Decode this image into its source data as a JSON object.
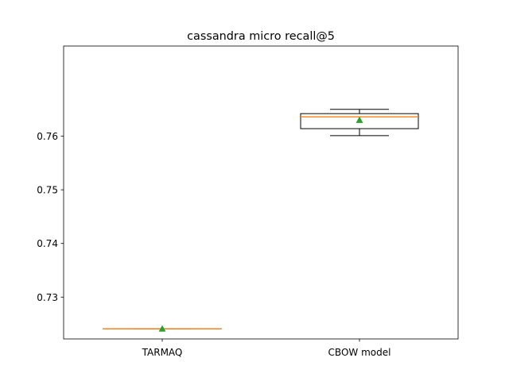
{
  "chart_data": {
    "type": "box",
    "title": "cassandra micro recall@5",
    "xlabel": "",
    "ylabel": "",
    "categories": [
      "TARMAQ",
      "CBOW model"
    ],
    "ylim": [
      0.7222,
      0.7768
    ],
    "yticks": [
      0.73,
      0.74,
      0.75,
      0.76
    ],
    "ytick_labels": [
      "0.73",
      "0.74",
      "0.75",
      "0.76"
    ],
    "grid": false,
    "legend": "none",
    "boxes": [
      {
        "label": "TARMAQ",
        "whisker_low": 0.7241,
        "q1": 0.7241,
        "median": 0.7241,
        "q3": 0.7241,
        "whisker_high": 0.7241,
        "mean": 0.7241
      },
      {
        "label": "CBOW model",
        "whisker_low": 0.7601,
        "q1": 0.7614,
        "median": 0.7636,
        "q3": 0.7642,
        "whisker_high": 0.765,
        "mean": 0.763
      }
    ],
    "colors": {
      "box": "#000000",
      "median": "#ff7f0e",
      "mean_marker": "#2ca02c"
    }
  }
}
